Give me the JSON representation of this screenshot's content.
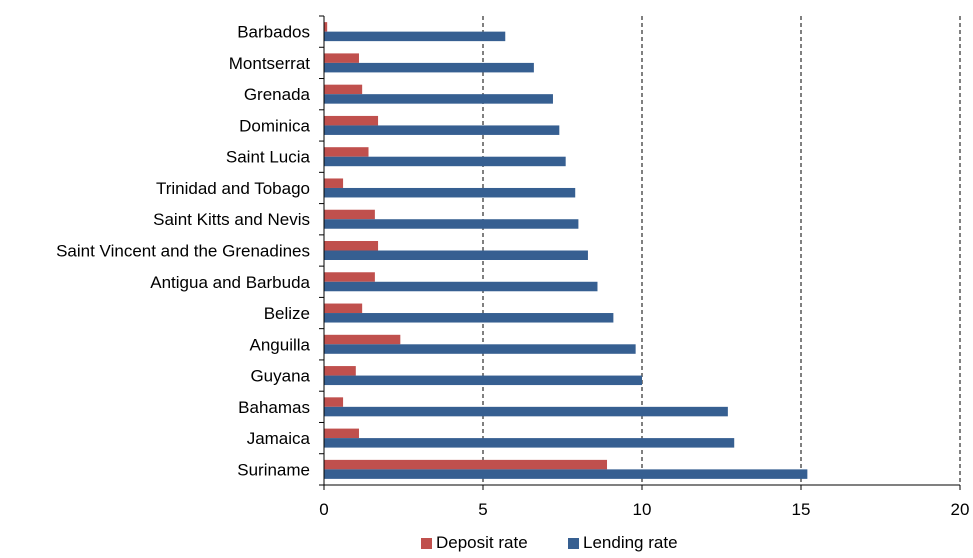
{
  "chart_data": {
    "type": "bar",
    "orientation": "horizontal",
    "categories": [
      "Barbados",
      "Montserrat",
      "Grenada",
      "Dominica",
      "Saint Lucia",
      "Trinidad and Tobago",
      "Saint Kitts and Nevis",
      "Saint Vincent and the Grenadines",
      "Antigua and Barbuda",
      "Belize",
      "Anguilla",
      "Guyana",
      "Bahamas",
      "Jamaica",
      "Suriname"
    ],
    "series": [
      {
        "name": "Deposit rate",
        "color": "#c0504d",
        "values": [
          0.1,
          1.1,
          1.2,
          1.7,
          1.4,
          0.6,
          1.6,
          1.7,
          1.6,
          1.2,
          2.4,
          1.0,
          0.6,
          1.1,
          8.9
        ]
      },
      {
        "name": "Lending rate",
        "color": "#365f91",
        "values": [
          5.7,
          6.6,
          7.2,
          7.4,
          7.6,
          7.9,
          8.0,
          8.3,
          8.6,
          9.1,
          9.8,
          10.0,
          12.7,
          12.9,
          15.2
        ]
      }
    ],
    "xlim": [
      0,
      20
    ],
    "xticks": [
      0,
      5,
      10,
      15,
      20
    ],
    "xtick_labels": [
      "0",
      "5",
      "10",
      "15",
      "20"
    ],
    "grid": "vertical dashed",
    "legend": "bottom",
    "title": "",
    "xlabel": "",
    "ylabel": ""
  }
}
